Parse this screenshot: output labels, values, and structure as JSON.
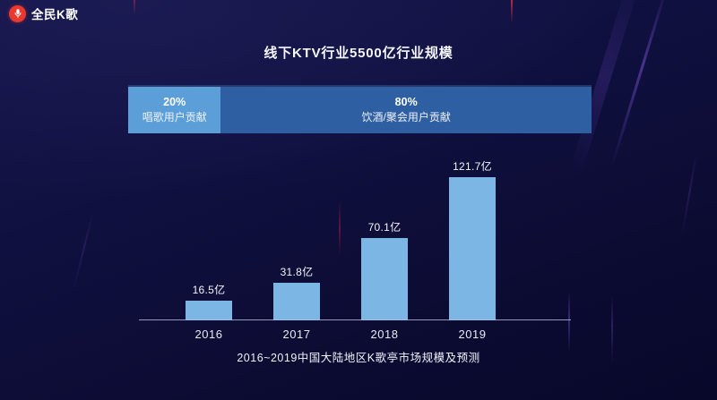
{
  "logo": {
    "text": "全民K歌",
    "icon": "microphone-icon",
    "icon_color": "#e8392e"
  },
  "chart_data": [
    {
      "id": "user_contribution",
      "type": "bar",
      "subtype": "horizontal-stacked-100pct",
      "title": "线下KTV行业5500亿行业规模",
      "unit": "%",
      "segments": [
        {
          "percent": "20%",
          "label": "唱歌用户贡献",
          "value": 20,
          "color": "#5b9ed8"
        },
        {
          "percent": "80%",
          "label": "饮酒/聚会用户贡献",
          "value": 80,
          "color": "#2f5fa3"
        }
      ],
      "legend": false,
      "grid": false
    },
    {
      "id": "ktv_booth_market",
      "type": "bar",
      "categories": [
        "2016",
        "2017",
        "2018",
        "2019"
      ],
      "values": [
        16.5,
        31.8,
        70.1,
        121.7
      ],
      "value_labels": [
        "16.5亿",
        "31.8亿",
        "70.1亿",
        "121.7亿"
      ],
      "unit": "亿",
      "title": "2016~2019中国大陆地区K歌亭市场规模及预测",
      "xlabel": "",
      "ylabel": "",
      "ylim": [
        0,
        130
      ],
      "bar_color": "#7cb6e4",
      "axis_color": "#b0bedc",
      "grid": false,
      "legend": false
    }
  ],
  "colors": {
    "background": "#0d0d38",
    "text": "#f2f4fa"
  }
}
